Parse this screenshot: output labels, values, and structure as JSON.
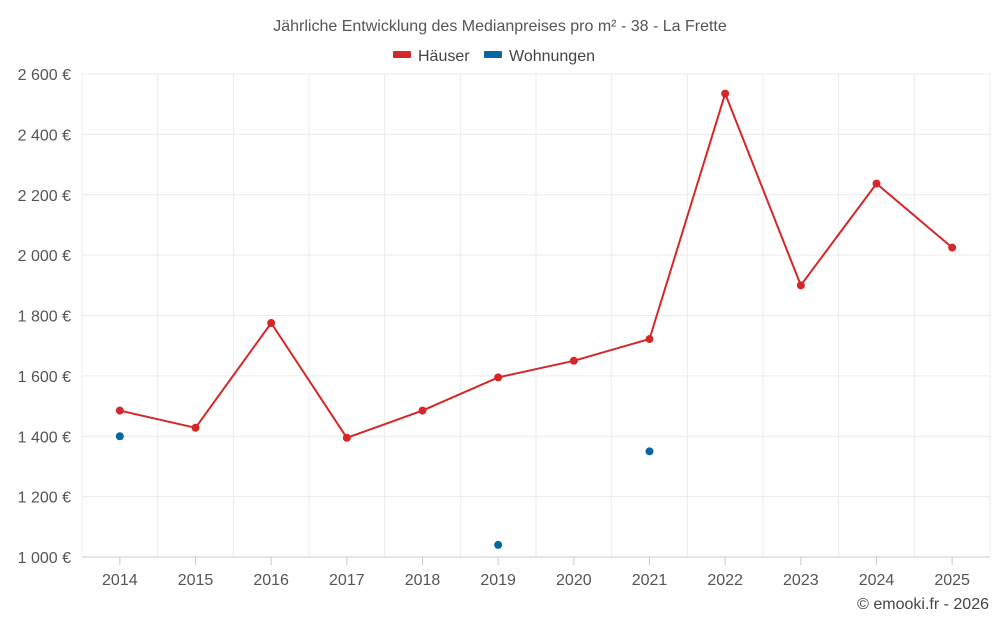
{
  "chart_data": {
    "type": "line",
    "title": "Jährliche Entwicklung des Medianpreises pro m² - 38 - La Frette",
    "categories": [
      "2014",
      "2015",
      "2016",
      "2017",
      "2018",
      "2019",
      "2020",
      "2021",
      "2022",
      "2023",
      "2024",
      "2025"
    ],
    "series": [
      {
        "name": "Häuser",
        "color": "#d62728",
        "values": [
          1485,
          1428,
          1775,
          1395,
          1485,
          1595,
          1650,
          1722,
          2535,
          1900,
          2237,
          2025
        ]
      },
      {
        "name": "Wohnungen",
        "color": "#0a66a0",
        "values": [
          1400,
          null,
          null,
          null,
          null,
          1040,
          null,
          1350,
          null,
          null,
          null,
          null
        ]
      }
    ],
    "ylim": [
      1000,
      2600
    ],
    "yticks": [
      1000,
      1200,
      1400,
      1600,
      1800,
      2000,
      2200,
      2400,
      2600
    ],
    "ytick_labels": [
      "1 000 €",
      "1 200 €",
      "1 400 €",
      "1 600 €",
      "1 800 €",
      "2 000 €",
      "2 200 €",
      "2 400 €",
      "2 600 €"
    ],
    "legend_position": "top-center",
    "grid": true
  },
  "credit": "© emooki.fr - 2026"
}
